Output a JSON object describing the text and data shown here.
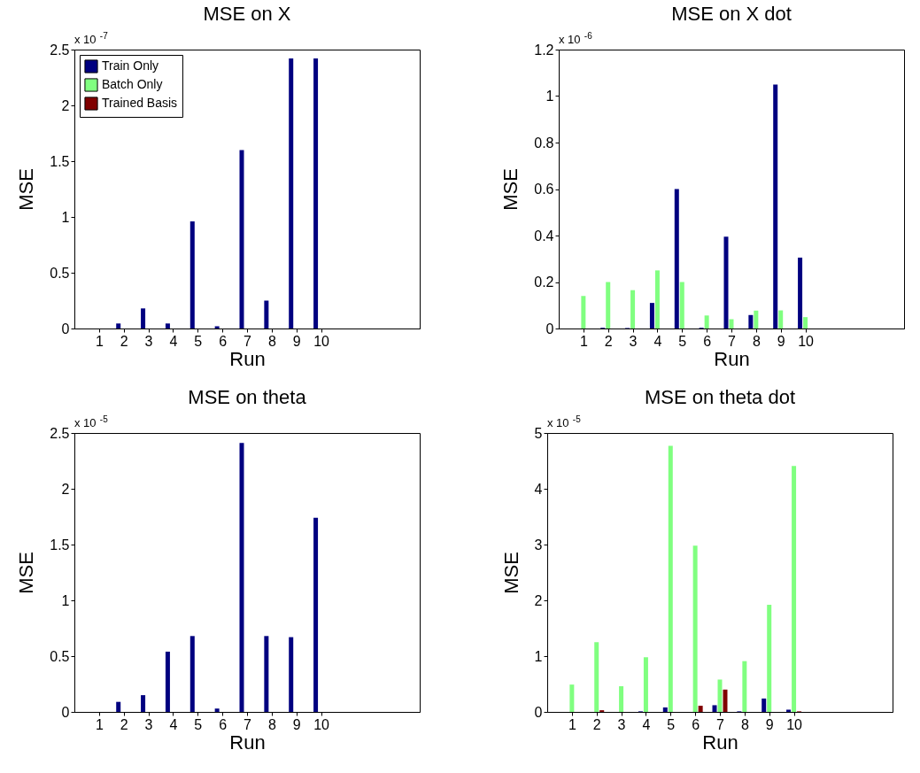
{
  "chart_data": [
    {
      "type": "bar",
      "title": "MSE on X",
      "xlabel": "Run",
      "ylabel": "MSE",
      "x": [
        1,
        2,
        3,
        4,
        5,
        6,
        7,
        8,
        9,
        10
      ],
      "xlim": [
        0,
        14
      ],
      "xticks": [
        1,
        2,
        3,
        4,
        5,
        6,
        7,
        8,
        9,
        10
      ],
      "ylim": [
        0,
        2.5
      ],
      "yticks": [
        0,
        0.5,
        1,
        1.5,
        2,
        2.5
      ],
      "legend": "top left",
      "annotations": [
        "x 10$^{-7}$"
      ],
      "series": [
        {
          "name": "Train Only",
          "color": "#000080",
          "values": [
            0,
            0.045,
            0.18,
            0.045,
            0.96,
            0.02,
            1.6,
            0.25,
            2.42,
            2.42
          ]
        },
        {
          "name": "Batch Only",
          "color": "#80ff80",
          "values": [
            0,
            0,
            0,
            0,
            0,
            0,
            0,
            0,
            0,
            0
          ]
        },
        {
          "name": "Trained Basis",
          "color": "#800000",
          "values": [
            0,
            0,
            0,
            0,
            0,
            0,
            0,
            0,
            0,
            0
          ]
        }
      ]
    },
    {
      "type": "bar",
      "title": "MSE on X dot",
      "xlabel": "Run",
      "ylabel": "MSE",
      "x": [
        1,
        2,
        3,
        4,
        5,
        6,
        7,
        8,
        9,
        10
      ],
      "xlim": [
        0,
        14
      ],
      "xticks": [
        1,
        2,
        3,
        4,
        5,
        6,
        7,
        8,
        9,
        10
      ],
      "ylim": [
        0,
        1.2
      ],
      "yticks": [
        0,
        0.2,
        0.4,
        0.6,
        0.8,
        1,
        1.2
      ],
      "annotations": [
        "x 10$^{-6}$"
      ],
      "series": [
        {
          "color": "#000080",
          "values": [
            0,
            0.003,
            0.002,
            0.11,
            0.6,
            0.003,
            0.395,
            0.058,
            1.05,
            0.305
          ]
        },
        {
          "color": "#80ff80",
          "values": [
            0.14,
            0.2,
            0.165,
            0.25,
            0.2,
            0.056,
            0.04,
            0.077,
            0.078,
            0.049
          ]
        },
        {
          "color": "#800000",
          "values": [
            0,
            0,
            0,
            0,
            0,
            0,
            0,
            0,
            0,
            0
          ]
        }
      ]
    },
    {
      "type": "bar",
      "title": "MSE on theta",
      "xlabel": "Run",
      "ylabel": "MSE",
      "x": [
        1,
        2,
        3,
        4,
        5,
        6,
        7,
        8,
        9,
        10
      ],
      "xlim": [
        0,
        14
      ],
      "xticks": [
        1,
        2,
        3,
        4,
        5,
        6,
        7,
        8,
        9,
        10
      ],
      "ylim": [
        0,
        2.5
      ],
      "yticks": [
        0,
        0.5,
        1,
        1.5,
        2,
        2.5
      ],
      "annotations": [
        "x 10$^{-5}$"
      ],
      "series": [
        {
          "color": "#000080",
          "values": [
            0,
            0.09,
            0.15,
            0.54,
            0.68,
            0.03,
            2.41,
            0.68,
            0.67,
            1.74
          ]
        },
        {
          "color": "#80ff80",
          "values": [
            0,
            0,
            0,
            0,
            0,
            0,
            0,
            0,
            0,
            0
          ]
        },
        {
          "color": "#800000",
          "values": [
            0,
            0,
            0,
            0,
            0,
            0,
            0,
            0,
            0,
            0
          ]
        }
      ]
    },
    {
      "type": "bar",
      "title": "MSE on theta dot",
      "xlabel": "Run",
      "ylabel": "MSE",
      "x": [
        1,
        2,
        3,
        4,
        5,
        6,
        7,
        8,
        9,
        10
      ],
      "xlim": [
        0,
        14
      ],
      "xticks": [
        1,
        2,
        3,
        4,
        5,
        6,
        7,
        8,
        9,
        10
      ],
      "ylim": [
        0,
        5
      ],
      "yticks": [
        0,
        1,
        2,
        3,
        4,
        5
      ],
      "annotations": [
        "x 10$^{-5}$"
      ],
      "series": [
        {
          "color": "#000080",
          "values": [
            0,
            0,
            0,
            0.01,
            0.08,
            0,
            0.12,
            0.01,
            0.24,
            0.04
          ]
        },
        {
          "color": "#80ff80",
          "values": [
            0.49,
            1.25,
            0.46,
            0.98,
            4.77,
            2.98,
            0.58,
            0.91,
            1.92,
            4.41
          ]
        },
        {
          "color": "#800000",
          "values": [
            0,
            0.03,
            0,
            0,
            0,
            0.11,
            0.4,
            0,
            0,
            0.01
          ]
        }
      ]
    }
  ]
}
